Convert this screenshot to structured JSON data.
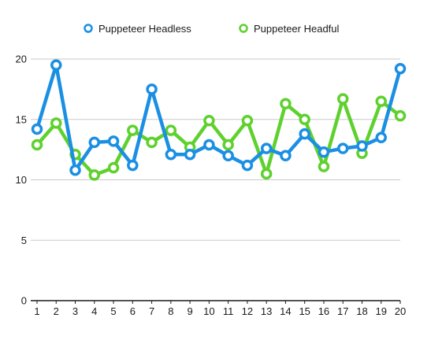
{
  "chart_data": {
    "type": "line",
    "x": [
      1,
      2,
      3,
      4,
      5,
      6,
      7,
      8,
      9,
      10,
      11,
      12,
      13,
      14,
      15,
      16,
      17,
      18,
      19,
      20
    ],
    "ylim": [
      0,
      20
    ],
    "yticks": [
      0,
      5,
      10,
      15,
      20
    ],
    "grid": true,
    "legend_position": "top",
    "series": [
      {
        "name": "Puppeteer Headless",
        "color": "#1a8fe3",
        "values": [
          14.2,
          19.5,
          10.8,
          13.1,
          13.2,
          11.2,
          17.5,
          12.1,
          12.1,
          12.9,
          12.0,
          11.2,
          12.6,
          12.0,
          13.8,
          12.3,
          12.6,
          12.8,
          13.5,
          19.2
        ]
      },
      {
        "name": "Puppeteer Headful",
        "color": "#5ed12e",
        "values": [
          12.9,
          14.7,
          12.1,
          10.4,
          11.0,
          14.1,
          13.1,
          14.1,
          12.7,
          14.9,
          12.9,
          14.9,
          10.5,
          16.3,
          15.0,
          11.1,
          16.7,
          12.2,
          16.5,
          15.3
        ]
      }
    ]
  }
}
